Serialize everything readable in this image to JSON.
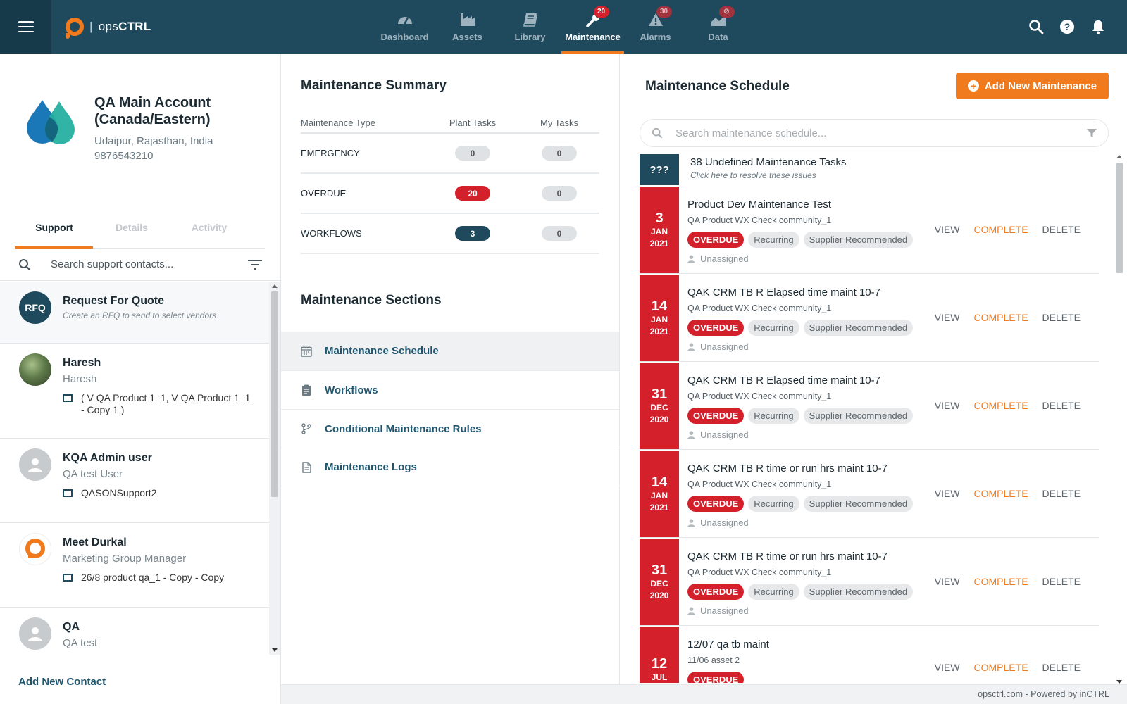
{
  "app": {
    "name_prefix": "ops",
    "name_suffix": "CTRL",
    "separator": "|"
  },
  "nav": [
    {
      "label": "Dashboard",
      "icon": "gauge-icon",
      "active": false,
      "badge": null
    },
    {
      "label": "Assets",
      "icon": "factory-icon",
      "active": false,
      "badge": null
    },
    {
      "label": "Library",
      "icon": "book-icon",
      "active": false,
      "badge": null
    },
    {
      "label": "Maintenance",
      "icon": "wrench-icon",
      "active": true,
      "badge": "20"
    },
    {
      "label": "Alarms",
      "icon": "alarm-icon",
      "active": false,
      "badge": "30"
    },
    {
      "label": "Data",
      "icon": "chart-icon",
      "active": false,
      "badge": ""
    }
  ],
  "account": {
    "name": "QA Main Account (Canada/Eastern)",
    "location": "Udaipur, Rajasthan, India",
    "phone": "9876543210"
  },
  "tabs": [
    {
      "label": "Support",
      "active": true
    },
    {
      "label": "Details",
      "active": false
    },
    {
      "label": "Activity",
      "active": false
    }
  ],
  "contact_search": {
    "placeholder": "Search support contacts..."
  },
  "contacts": [
    {
      "name": "Request For Quote",
      "sub": "Create an RFQ to send to select vendors",
      "avatar_text": "RFQ",
      "asset": ""
    },
    {
      "name": "Haresh",
      "sub": "Haresh",
      "asset": "( V QA Product 1_1, V QA Product 1_1 - Copy 1 )"
    },
    {
      "name": "KQA Admin user",
      "sub": "QA test User",
      "asset": "QASONSupport2"
    },
    {
      "name": "Meet Durkal",
      "sub": "Marketing Group Manager",
      "asset": "26/8 product qa_1 - Copy - Copy"
    },
    {
      "name": "QA",
      "sub": "QA test",
      "asset": ""
    }
  ],
  "add_contact_label": "Add New Contact",
  "summary": {
    "title": "Maintenance Summary",
    "headers": [
      "Maintenance Type",
      "Plant Tasks",
      "My Tasks"
    ],
    "rows": [
      {
        "type": "EMERGENCY",
        "plant": "0",
        "mine": "0"
      },
      {
        "type": "OVERDUE",
        "plant": "20",
        "mine": "0"
      },
      {
        "type": "WORKFLOWS",
        "plant": "3",
        "mine": "0"
      }
    ]
  },
  "sections": {
    "title": "Maintenance Sections",
    "items": [
      {
        "label": "Maintenance Schedule",
        "icon": "calendar-icon"
      },
      {
        "label": "Workflows",
        "icon": "clipboard-icon"
      },
      {
        "label": "Conditional Maintenance Rules",
        "icon": "branch-icon"
      },
      {
        "label": "Maintenance Logs",
        "icon": "document-icon"
      }
    ]
  },
  "schedule": {
    "title": "Maintenance Schedule",
    "add_label": "Add New Maintenance",
    "search_placeholder": "Search maintenance schedule...",
    "undefined": {
      "badge": "???",
      "title": "38 Undefined Maintenance Tasks",
      "hint": "Click here to resolve these issues"
    },
    "actions": {
      "view": "VIEW",
      "complete": "COMPLETE",
      "delete": "DELETE"
    },
    "tasks": [
      {
        "day": "3",
        "month": "JAN",
        "year": "2021",
        "title": "Product Dev Maintenance Test",
        "asset": "QA Product WX Check community_1",
        "tags": [
          "OVERDUE",
          "Recurring",
          "Supplier Recommended"
        ],
        "assignee": "Unassigned"
      },
      {
        "day": "14",
        "month": "JAN",
        "year": "2021",
        "title": "QAK CRM TB R Elapsed time maint 10-7",
        "asset": "QA Product WX Check community_1",
        "tags": [
          "OVERDUE",
          "Recurring",
          "Supplier Recommended"
        ],
        "assignee": "Unassigned"
      },
      {
        "day": "31",
        "month": "DEC",
        "year": "2020",
        "title": "QAK CRM TB R Elapsed time maint 10-7",
        "asset": "QA Product WX Check community_1",
        "tags": [
          "OVERDUE",
          "Recurring",
          "Supplier Recommended"
        ],
        "assignee": "Unassigned"
      },
      {
        "day": "14",
        "month": "JAN",
        "year": "2021",
        "title": "QAK CRM TB R time or run hrs maint 10-7",
        "asset": "QA Product WX Check community_1",
        "tags": [
          "OVERDUE",
          "Recurring",
          "Supplier Recommended"
        ],
        "assignee": "Unassigned"
      },
      {
        "day": "31",
        "month": "DEC",
        "year": "2020",
        "title": "QAK CRM TB R time or run hrs maint 10-7",
        "asset": "QA Product WX Check community_1",
        "tags": [
          "OVERDUE",
          "Recurring",
          "Supplier Recommended"
        ],
        "assignee": "Unassigned"
      },
      {
        "day": "12",
        "month": "JUL",
        "year": "",
        "title": "12/07 qa tb maint",
        "asset": "11/06 asset 2",
        "tags": [
          "OVERDUE"
        ],
        "assignee": ""
      }
    ]
  },
  "footer": "opsctrl.com - Powered by inCTRL",
  "colors": {
    "navy": "#1f4a5e",
    "orange": "#f07a1e",
    "red": "#d4202a"
  }
}
